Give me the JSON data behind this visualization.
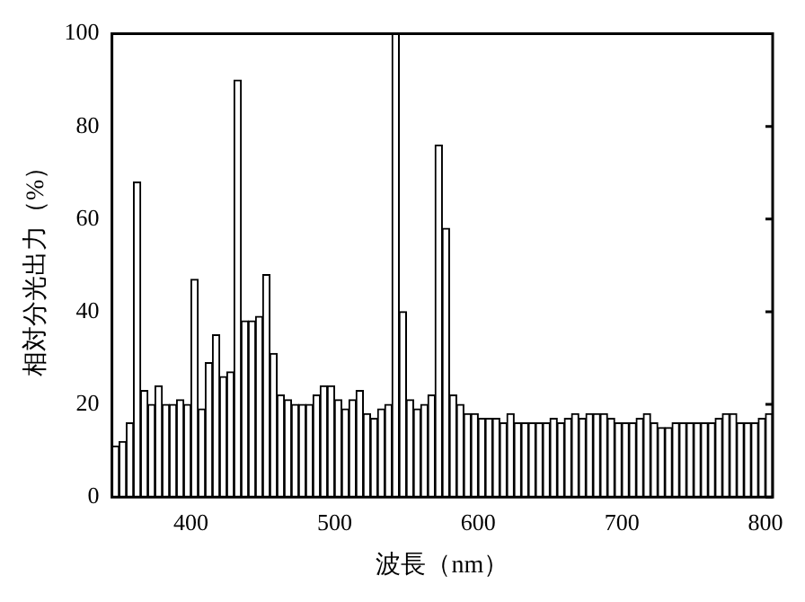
{
  "chart_data": {
    "type": "histogram",
    "xlabel": "波長（nm）",
    "ylabel": "相対分光出力（%）",
    "bins": [
      345,
      350,
      355,
      360,
      365,
      370,
      375,
      380,
      385,
      390,
      395,
      400,
      405,
      410,
      415,
      420,
      425,
      430,
      435,
      440,
      445,
      450,
      455,
      460,
      465,
      470,
      475,
      480,
      485,
      490,
      495,
      500,
      505,
      510,
      515,
      520,
      525,
      530,
      535,
      540,
      545,
      550,
      555,
      560,
      565,
      570,
      575,
      580,
      585,
      590,
      595,
      600,
      605,
      610,
      615,
      620,
      625,
      630,
      635,
      640,
      645,
      650,
      655,
      660,
      665,
      670,
      675,
      680,
      685,
      690,
      695,
      700,
      705,
      710,
      715,
      720,
      725,
      730,
      735,
      740,
      745,
      750,
      755,
      760,
      765,
      770,
      775,
      780,
      785,
      790,
      795,
      800,
      805
    ],
    "values": [
      11,
      12,
      16,
      68,
      23,
      20,
      24,
      20,
      20,
      21,
      20,
      47,
      19,
      29,
      35,
      26,
      27,
      90,
      38,
      38,
      39,
      48,
      31,
      22,
      21,
      20,
      20,
      20,
      22,
      24,
      24,
      21,
      19,
      21,
      23,
      18,
      17,
      19,
      20,
      100,
      40,
      21,
      19,
      20,
      22,
      76,
      58,
      22,
      20,
      18,
      18,
      17,
      17,
      17,
      16,
      18,
      16,
      16,
      16,
      16,
      16,
      17,
      16,
      17,
      18,
      17,
      18,
      18,
      18,
      17,
      16,
      16,
      16,
      17,
      18,
      16,
      15,
      15,
      16,
      16,
      16,
      16,
      16,
      16,
      17,
      18,
      18,
      16,
      16,
      16,
      17,
      18
    ],
    "color": "#ffffff",
    "xlim": [
      345,
      805
    ],
    "xticks": [
      400,
      500,
      600,
      700,
      800
    ],
    "ylim": [
      0,
      100
    ],
    "yticks": [
      0,
      20,
      40,
      60,
      80,
      100
    ],
    "grid": false,
    "legend": false
  }
}
